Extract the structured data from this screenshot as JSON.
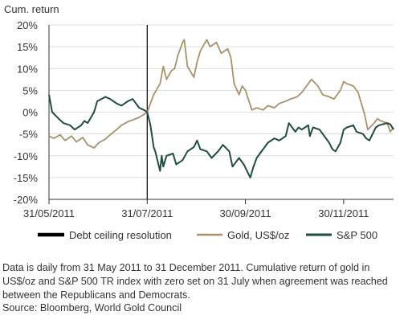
{
  "chart_data": {
    "type": "line",
    "ylabel": "Cum. return",
    "ylim": [
      -20,
      20
    ],
    "yticks": [
      20,
      15,
      10,
      5,
      0,
      -5,
      -10,
      -15,
      -20
    ],
    "ytick_labels": [
      "20%",
      "15%",
      "10%",
      "5%",
      "0%",
      "-5%",
      "-10%",
      "-15%",
      "-20%"
    ],
    "x_start": "2011-05-31",
    "x_end": "2011-12-31",
    "xtick_dates": [
      "2011-05-31",
      "2011-07-31",
      "2011-09-30",
      "2011-11-30"
    ],
    "xtick_labels": [
      "31/05/2011",
      "31/07/2011",
      "30/09/2011",
      "30/11/2011"
    ],
    "grid": "horizontal",
    "legend_position": "bottom",
    "marker": {
      "name": "Debt ceiling resolution",
      "date": "2011-07-31",
      "color": "#000000"
    },
    "series": [
      {
        "name": "Gold, US$/oz",
        "color": "#a8926a",
        "points": [
          [
            "2011-05-31",
            -5.5
          ],
          [
            "2011-06-03",
            -6.0
          ],
          [
            "2011-06-07",
            -5.2
          ],
          [
            "2011-06-10",
            -6.5
          ],
          [
            "2011-06-14",
            -5.5
          ],
          [
            "2011-06-17",
            -6.8
          ],
          [
            "2011-06-21",
            -5.8
          ],
          [
            "2011-06-24",
            -7.5
          ],
          [
            "2011-06-28",
            -8.2
          ],
          [
            "2011-07-01",
            -7.0
          ],
          [
            "2011-07-05",
            -6.2
          ],
          [
            "2011-07-08",
            -5.2
          ],
          [
            "2011-07-12",
            -4.0
          ],
          [
            "2011-07-15",
            -3.0
          ],
          [
            "2011-07-19",
            -2.2
          ],
          [
            "2011-07-22",
            -1.8
          ],
          [
            "2011-07-26",
            -1.2
          ],
          [
            "2011-07-29",
            -0.5
          ],
          [
            "2011-07-31",
            0.0
          ],
          [
            "2011-08-02",
            2.0
          ],
          [
            "2011-08-04",
            4.0
          ],
          [
            "2011-08-08",
            6.5
          ],
          [
            "2011-08-10",
            10.5
          ],
          [
            "2011-08-12",
            7.5
          ],
          [
            "2011-08-15",
            9.5
          ],
          [
            "2011-08-17",
            10.0
          ],
          [
            "2011-08-19",
            13.0
          ],
          [
            "2011-08-22",
            16.0
          ],
          [
            "2011-08-23",
            16.6
          ],
          [
            "2011-08-25",
            10.5
          ],
          [
            "2011-08-29",
            8.0
          ],
          [
            "2011-08-31",
            11.5
          ],
          [
            "2011-09-02",
            14.0
          ],
          [
            "2011-09-06",
            16.6
          ],
          [
            "2011-09-08",
            15.0
          ],
          [
            "2011-09-12",
            16.0
          ],
          [
            "2011-09-15",
            13.5
          ],
          [
            "2011-09-19",
            14.5
          ],
          [
            "2011-09-21",
            12.5
          ],
          [
            "2011-09-23",
            6.5
          ],
          [
            "2011-09-26",
            4.0
          ],
          [
            "2011-09-28",
            6.0
          ],
          [
            "2011-09-30",
            5.0
          ],
          [
            "2011-10-04",
            0.5
          ],
          [
            "2011-10-07",
            1.0
          ],
          [
            "2011-10-11",
            0.5
          ],
          [
            "2011-10-14",
            1.5
          ],
          [
            "2011-10-18",
            1.0
          ],
          [
            "2011-10-21",
            2.0
          ],
          [
            "2011-10-25",
            2.5
          ],
          [
            "2011-10-28",
            3.0
          ],
          [
            "2011-11-01",
            3.5
          ],
          [
            "2011-11-04",
            4.5
          ],
          [
            "2011-11-08",
            6.5
          ],
          [
            "2011-11-10",
            7.5
          ],
          [
            "2011-11-14",
            6.0
          ],
          [
            "2011-11-17",
            4.0
          ],
          [
            "2011-11-21",
            3.5
          ],
          [
            "2011-11-24",
            3.0
          ],
          [
            "2011-11-28",
            5.0
          ],
          [
            "2011-11-30",
            7.0
          ],
          [
            "2011-12-02",
            6.5
          ],
          [
            "2011-12-06",
            6.0
          ],
          [
            "2011-12-09",
            4.5
          ],
          [
            "2011-12-13",
            -0.5
          ],
          [
            "2011-12-15",
            -4.0
          ],
          [
            "2011-12-19",
            -2.5
          ],
          [
            "2011-12-21",
            -1.5
          ],
          [
            "2011-12-23",
            -2.0
          ],
          [
            "2011-12-27",
            -2.5
          ],
          [
            "2011-12-29",
            -4.5
          ],
          [
            "2011-12-31",
            -3.5
          ]
        ]
      },
      {
        "name": "S&P 500",
        "color": "#1f4e3d",
        "points": [
          [
            "2011-05-31",
            4.0
          ],
          [
            "2011-06-02",
            0.0
          ],
          [
            "2011-06-06",
            -1.5
          ],
          [
            "2011-06-09",
            -2.5
          ],
          [
            "2011-06-13",
            -3.0
          ],
          [
            "2011-06-16",
            -4.0
          ],
          [
            "2011-06-20",
            -3.0
          ],
          [
            "2011-06-22",
            -2.0
          ],
          [
            "2011-06-24",
            -2.5
          ],
          [
            "2011-06-28",
            0.0
          ],
          [
            "2011-06-30",
            2.5
          ],
          [
            "2011-07-05",
            3.5
          ],
          [
            "2011-07-08",
            3.0
          ],
          [
            "2011-07-12",
            2.0
          ],
          [
            "2011-07-15",
            1.5
          ],
          [
            "2011-07-19",
            2.5
          ],
          [
            "2011-07-22",
            3.0
          ],
          [
            "2011-07-26",
            1.0
          ],
          [
            "2011-07-29",
            0.5
          ],
          [
            "2011-07-31",
            0.0
          ],
          [
            "2011-08-02",
            -3.0
          ],
          [
            "2011-08-04",
            -8.0
          ],
          [
            "2011-08-05",
            -9.0
          ],
          [
            "2011-08-08",
            -13.5
          ],
          [
            "2011-08-09",
            -10.0
          ],
          [
            "2011-08-10",
            -12.5
          ],
          [
            "2011-08-12",
            -10.0
          ],
          [
            "2011-08-16",
            -9.5
          ],
          [
            "2011-08-18",
            -12.0
          ],
          [
            "2011-08-22",
            -11.0
          ],
          [
            "2011-08-25",
            -9.0
          ],
          [
            "2011-08-29",
            -8.0
          ],
          [
            "2011-08-31",
            -6.5
          ],
          [
            "2011-09-02",
            -8.5
          ],
          [
            "2011-09-06",
            -9.0
          ],
          [
            "2011-09-09",
            -10.5
          ],
          [
            "2011-09-13",
            -9.0
          ],
          [
            "2011-09-16",
            -7.5
          ],
          [
            "2011-09-20",
            -9.0
          ],
          [
            "2011-09-22",
            -12.5
          ],
          [
            "2011-09-26",
            -10.5
          ],
          [
            "2011-09-29",
            -12.0
          ],
          [
            "2011-10-03",
            -15.0
          ],
          [
            "2011-10-05",
            -12.5
          ],
          [
            "2011-10-07",
            -10.5
          ],
          [
            "2011-10-11",
            -8.5
          ],
          [
            "2011-10-14",
            -7.0
          ],
          [
            "2011-10-18",
            -6.0
          ],
          [
            "2011-10-21",
            -6.5
          ],
          [
            "2011-10-25",
            -5.5
          ],
          [
            "2011-10-27",
            -2.5
          ],
          [
            "2011-10-31",
            -4.5
          ],
          [
            "2011-11-02",
            -3.5
          ],
          [
            "2011-11-04",
            -4.0
          ],
          [
            "2011-11-08",
            -3.0
          ],
          [
            "2011-11-09",
            -5.5
          ],
          [
            "2011-11-11",
            -3.5
          ],
          [
            "2011-11-15",
            -4.0
          ],
          [
            "2011-11-17",
            -5.0
          ],
          [
            "2011-11-21",
            -7.0
          ],
          [
            "2011-11-23",
            -8.5
          ],
          [
            "2011-11-25",
            -9.0
          ],
          [
            "2011-11-28",
            -7.0
          ],
          [
            "2011-11-30",
            -4.0
          ],
          [
            "2011-12-02",
            -3.5
          ],
          [
            "2011-12-06",
            -3.0
          ],
          [
            "2011-12-08",
            -4.5
          ],
          [
            "2011-12-12",
            -5.0
          ],
          [
            "2011-12-14",
            -6.0
          ],
          [
            "2011-12-16",
            -6.5
          ],
          [
            "2011-12-20",
            -3.5
          ],
          [
            "2011-12-22",
            -3.0
          ],
          [
            "2011-12-27",
            -2.5
          ],
          [
            "2011-12-29",
            -2.8
          ],
          [
            "2011-12-31",
            -4.0
          ]
        ]
      }
    ]
  },
  "footnote": {
    "text": "Data is daily from 31 May 2011 to 31 December 2011. Cumulative return of gold in US$/oz and S&P 500 TR index with zero set on 31 July when agreement was reached between the Republicans and Democrats.",
    "source": "Source: Bloomberg, World Gold Council"
  }
}
